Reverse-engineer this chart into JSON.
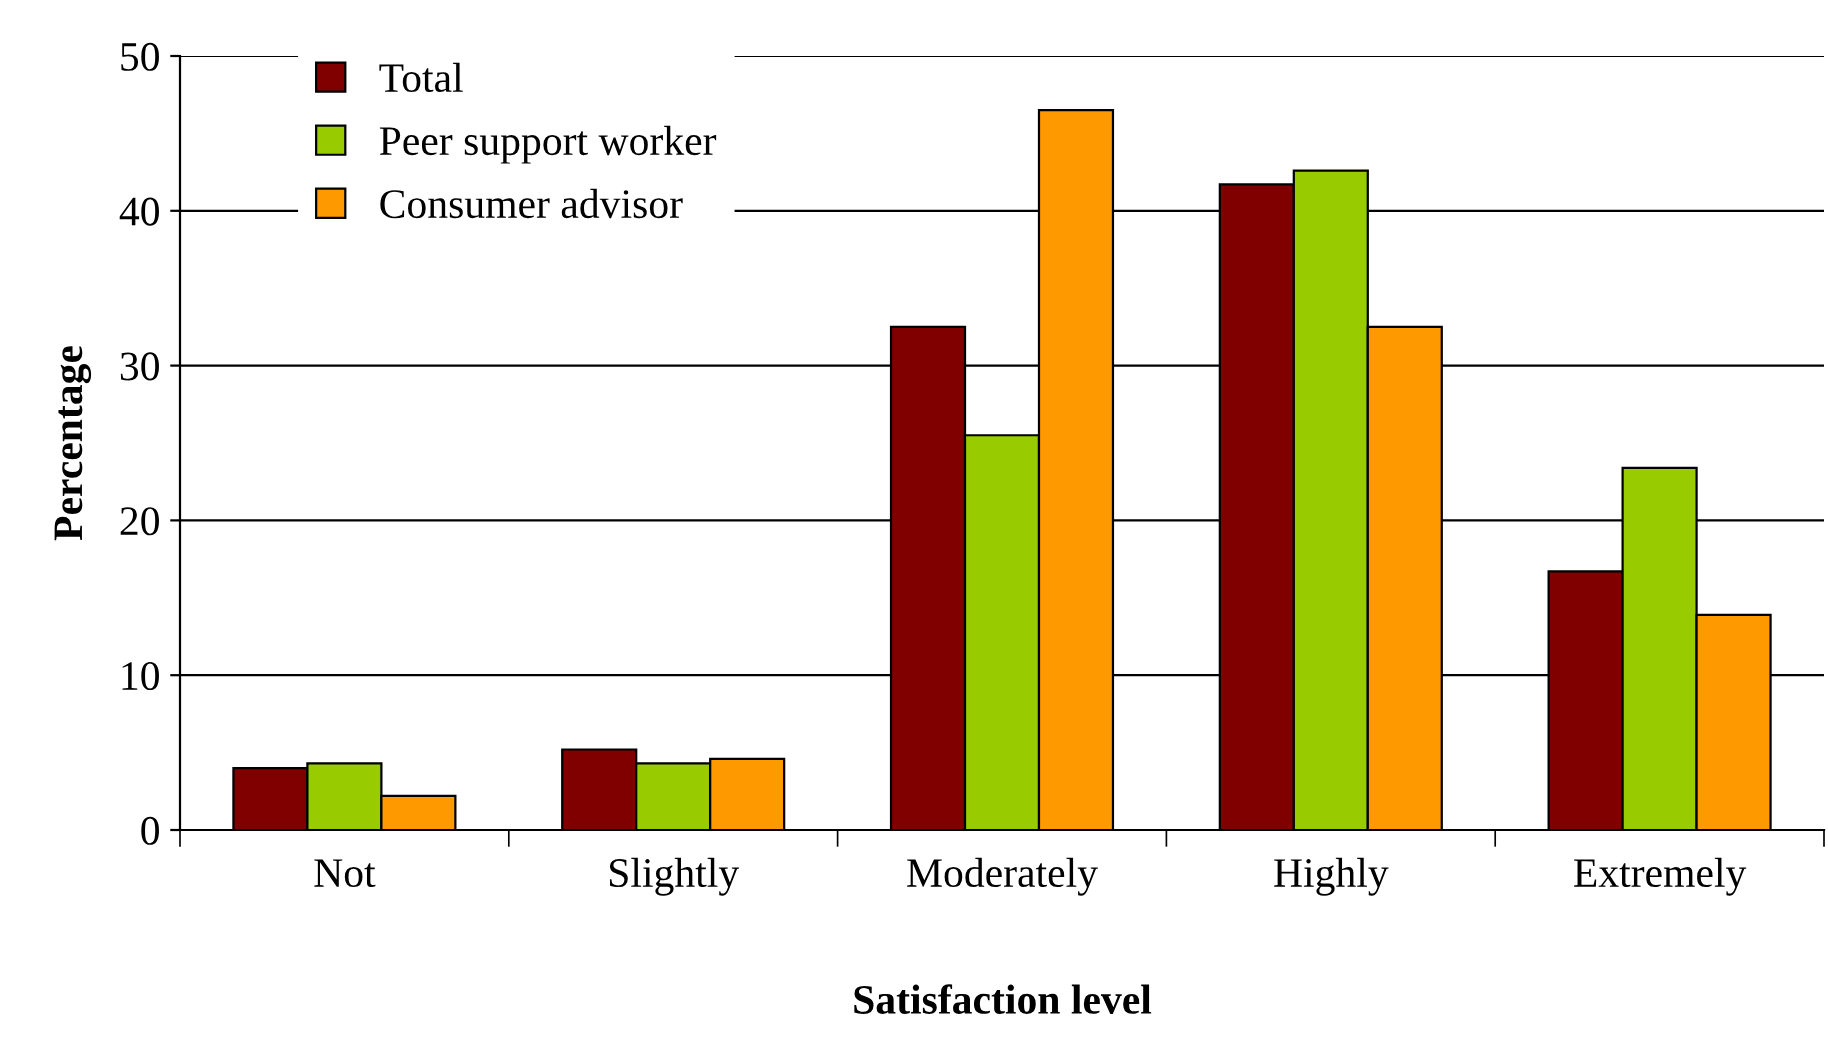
{
  "chart_data": {
    "type": "bar",
    "xlabel": "Satisfaction level",
    "ylabel": "Percentage",
    "categories": [
      "Not",
      "Slightly",
      "Moderately",
      "Highly",
      "Extremely"
    ],
    "series": [
      {
        "name": "Total",
        "color": "#800000",
        "values": [
          4.0,
          5.2,
          32.5,
          41.7,
          16.7
        ]
      },
      {
        "name": "Peer support worker",
        "color": "#99cc00",
        "values": [
          4.3,
          4.3,
          25.5,
          42.6,
          23.4
        ]
      },
      {
        "name": "Consumer advisor",
        "color": "#ff9900",
        "values": [
          2.2,
          4.6,
          46.5,
          32.5,
          13.9
        ]
      }
    ],
    "ylim": [
      0,
      50
    ],
    "yticks": [
      0,
      10,
      20,
      30,
      40,
      50
    ],
    "grid": "y",
    "legend": "top left"
  }
}
